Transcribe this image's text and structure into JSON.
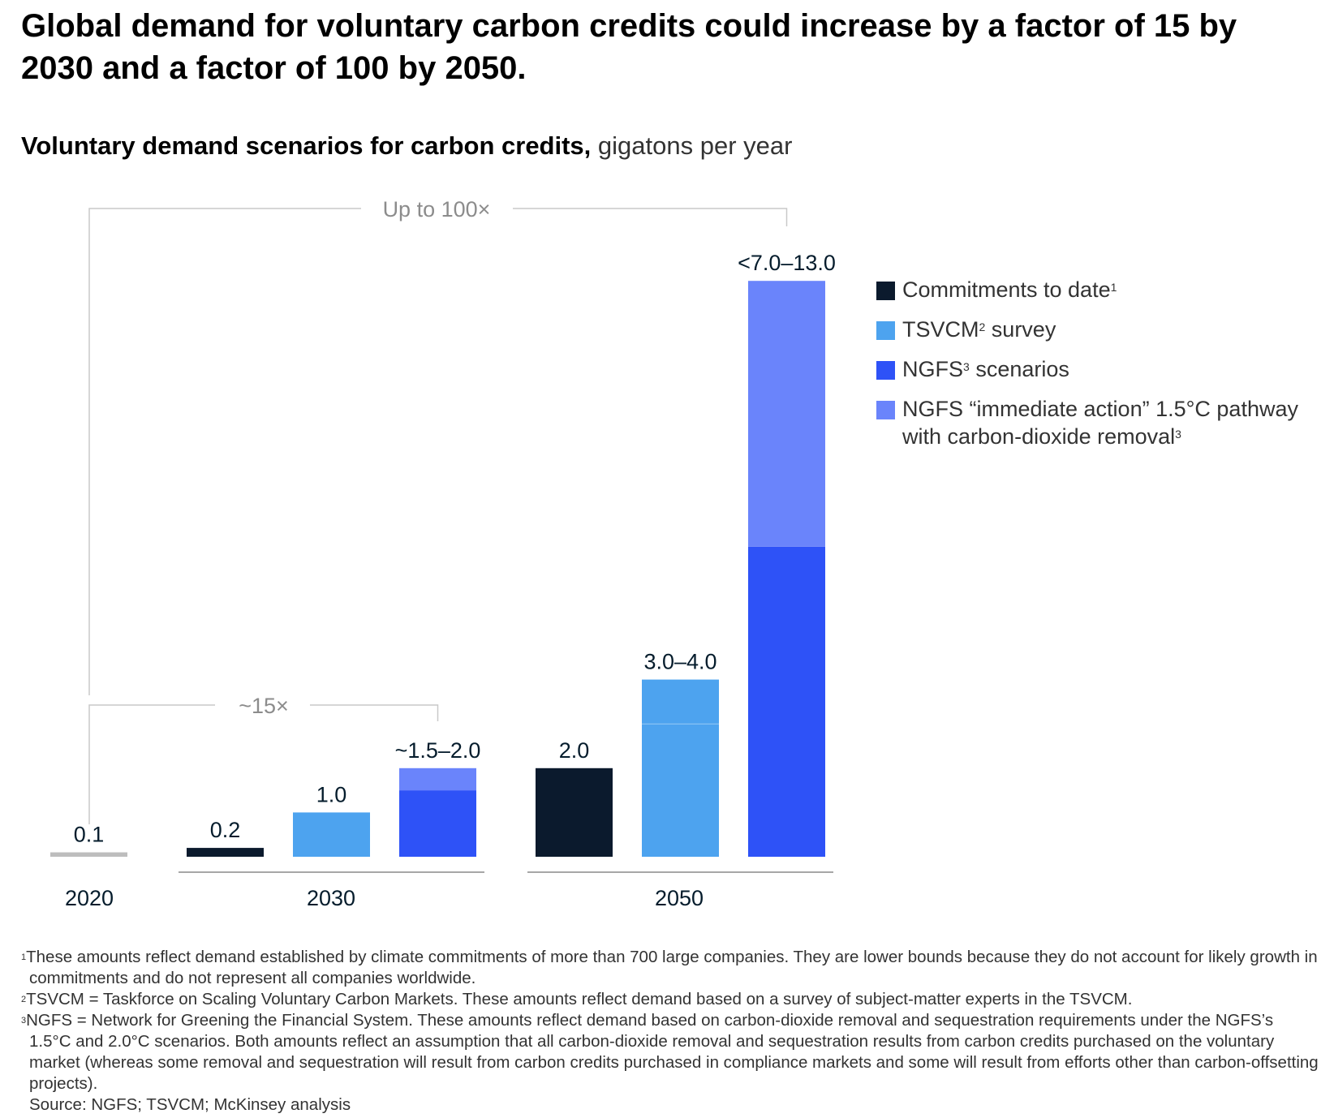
{
  "title": "Global demand for voluntary carbon credits could increase by a factor of 15 by 2030 and a factor of 100 by 2050.",
  "subtitle": {
    "bold": "Voluntary demand scenarios for carbon credits,",
    "unit": "gigatons per year"
  },
  "colors": {
    "commitments": "#0b1a2d",
    "tsvcm": "#4da3ef",
    "ngfs": "#2e52f7",
    "ngfs_immediate": "#6a84fb",
    "baseline_2020": "#bdbdbd"
  },
  "legend": [
    {
      "key": "commitments",
      "label": "Commitments to date",
      "sup": "1"
    },
    {
      "key": "tsvcm",
      "label_pre": "TSVCM",
      "sup": "2",
      "label_post": " survey"
    },
    {
      "key": "ngfs",
      "label_pre": "NGFS",
      "sup": "3",
      "label_post": " scenarios"
    },
    {
      "key": "ngfs_immediate",
      "label": "NGFS “immediate action” 1.5°C pathway with carbon-dioxide removal",
      "sup": "3"
    }
  ],
  "chart_data": {
    "type": "bar",
    "unit": "gigatons per year",
    "ylim": [
      0,
      13
    ],
    "groups": [
      {
        "label": "2020",
        "bars": [
          {
            "key": "baseline_2020",
            "value": 0.1,
            "label": "0.1",
            "segments": [
              {
                "key": "baseline_2020",
                "from": 0,
                "to": 0.1
              }
            ]
          }
        ]
      },
      {
        "label": "2030",
        "bars": [
          {
            "key": "commitments",
            "value": 0.2,
            "label": "0.2",
            "segments": [
              {
                "key": "commitments",
                "from": 0,
                "to": 0.2
              }
            ]
          },
          {
            "key": "tsvcm",
            "value": 1.0,
            "label": "1.0",
            "segments": [
              {
                "key": "tsvcm",
                "from": 0,
                "to": 1.0
              }
            ]
          },
          {
            "key": "ngfs",
            "value": 2.0,
            "label": "~1.5–2.0",
            "segments": [
              {
                "key": "ngfs",
                "from": 0,
                "to": 1.5
              },
              {
                "key": "ngfs_immediate",
                "from": 1.5,
                "to": 2.0
              }
            ]
          }
        ]
      },
      {
        "label": "2050",
        "bars": [
          {
            "key": "commitments",
            "value": 2.0,
            "label": "2.0",
            "segments": [
              {
                "key": "commitments",
                "from": 0,
                "to": 2.0
              }
            ]
          },
          {
            "key": "tsvcm",
            "value": 4.0,
            "label": "3.0–4.0",
            "segments": [
              {
                "key": "tsvcm",
                "from": 0,
                "to": 3.0
              },
              {
                "key": "tsvcm",
                "from": 3.0,
                "to": 4.0
              }
            ]
          },
          {
            "key": "ngfs",
            "value": 13.0,
            "label": "<7.0–13.0",
            "segments": [
              {
                "key": "ngfs",
                "from": 0,
                "to": 7.0
              },
              {
                "key": "ngfs_immediate",
                "from": 7.0,
                "to": 13.0
              }
            ]
          }
        ]
      }
    ],
    "annotations": [
      {
        "label": "~15×",
        "from": "2020",
        "to": "2030 NGFS"
      },
      {
        "label": "Up to 100×",
        "from": "2020",
        "to": "2050 NGFS"
      }
    ]
  },
  "footnotes": [
    {
      "sup": "1",
      "text": "These amounts reflect demand established by climate commitments of more than 700 large companies. They are lower bounds because they do not account for likely growth in commitments and do not represent all companies worldwide."
    },
    {
      "sup": "2",
      "text": "TSVCM = Taskforce on Scaling Voluntary Carbon Markets. These amounts reflect demand based on a survey of subject-matter experts in the TSVCM."
    },
    {
      "sup": "3",
      "text": "NGFS = Network for Greening the Financial System. These amounts reflect demand based on carbon-dioxide removal and sequestration requirements under the NGFS’s 1.5°C and 2.0°C scenarios. Both amounts reflect an assumption that all carbon-dioxide removal and sequestration results from carbon credits purchased on the voluntary market (whereas some removal and sequestration will result from carbon credits purchased in compliance markets and some will result from efforts other than carbon-offsetting projects)."
    }
  ],
  "source": "Source: NGFS; TSVCM; McKinsey analysis"
}
